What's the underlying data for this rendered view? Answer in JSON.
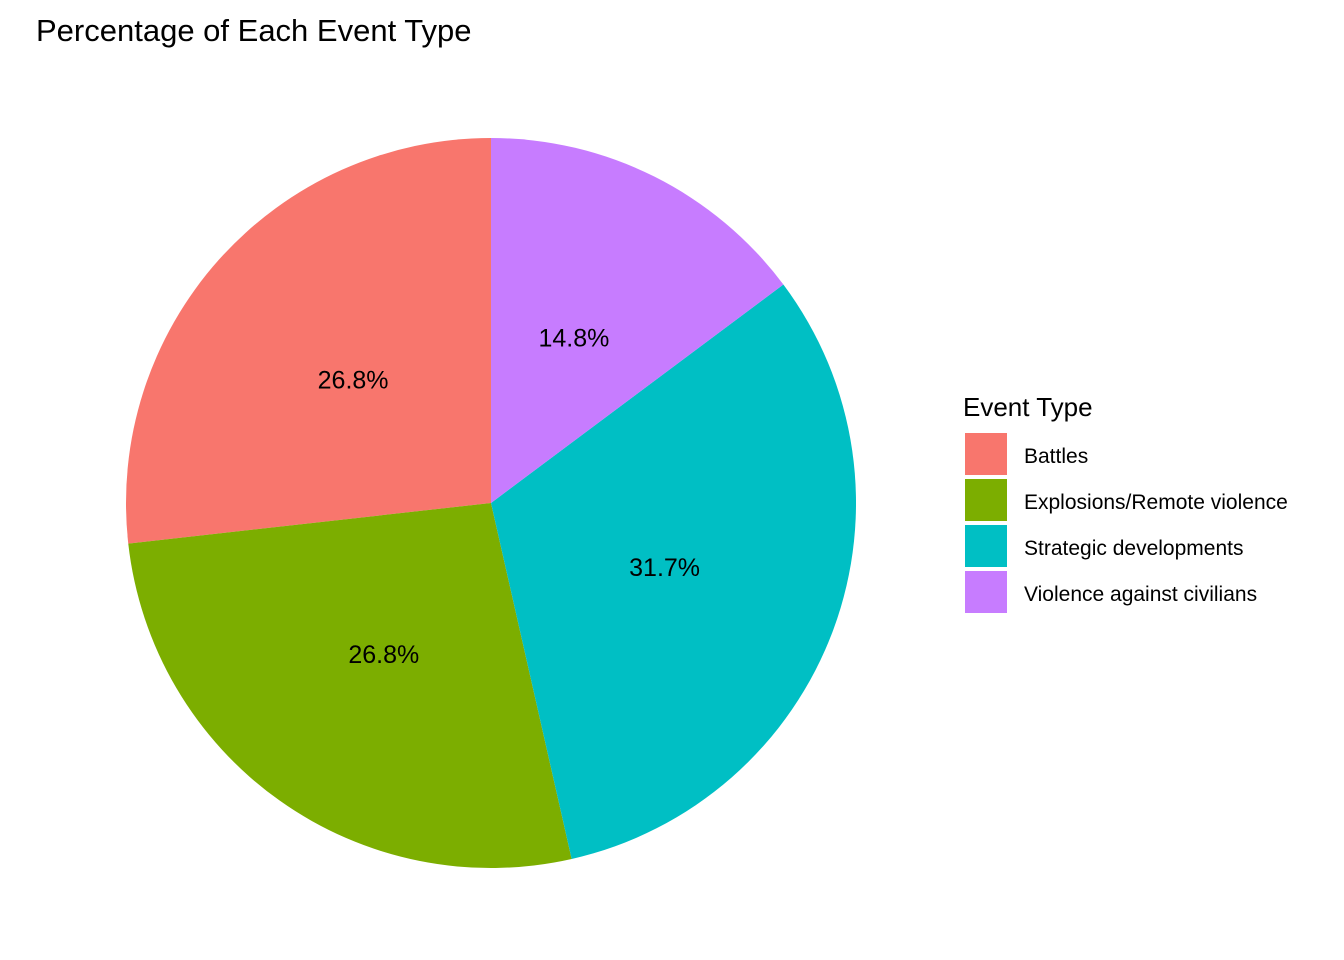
{
  "chart_data": {
    "type": "pie",
    "title": "Percentage of Each Event Type",
    "legend_title": "Event Type",
    "legend_position": "right",
    "start_angle": "12 o'clock",
    "direction": "counterclockwise",
    "slices": [
      {
        "label": "Battles",
        "value": 26.8,
        "value_label": "26.8%",
        "color": "#F8766D"
      },
      {
        "label": "Explosions/Remote violence",
        "value": 26.8,
        "value_label": "26.8%",
        "color": "#7CAE00"
      },
      {
        "label": "Strategic developments",
        "value": 31.7,
        "value_label": "31.7%",
        "color": "#00BFC4"
      },
      {
        "label": "Violence against civilians",
        "value": 14.8,
        "value_label": "14.8%",
        "color": "#C77CFF"
      }
    ]
  }
}
